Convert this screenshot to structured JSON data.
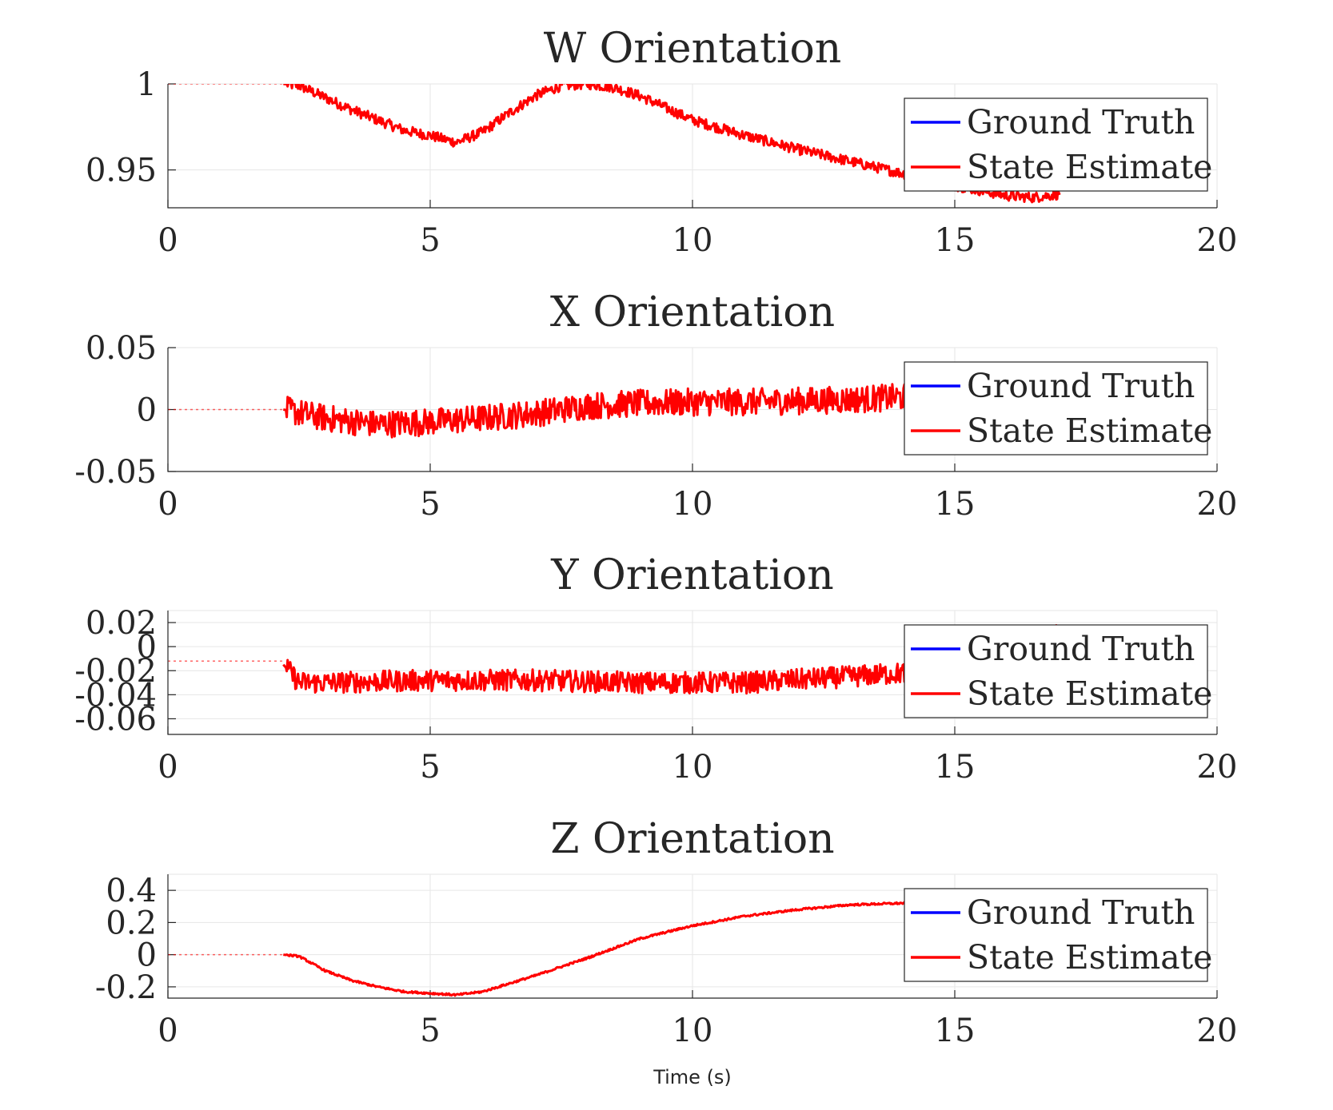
{
  "chart_data": [
    {
      "type": "line",
      "title": "W Orientation",
      "xlabel": "",
      "ylabel": "",
      "xlim": [
        0,
        20
      ],
      "ylim": [
        0.928,
        1.0
      ],
      "xticks": [
        0,
        5,
        10,
        15,
        20
      ],
      "xtick_labels": [
        "0",
        "5",
        "10",
        "15",
        "20"
      ],
      "yticks": [
        0.95,
        1.0
      ],
      "ytick_labels": [
        "0.95",
        "1"
      ],
      "grid": true,
      "legend_position": "top-right",
      "series": [
        {
          "name": "Ground Truth",
          "color": "#0000ff",
          "x": [
            0,
            17
          ],
          "y": [
            1.0,
            1.0
          ]
        },
        {
          "name": "State Estimate",
          "color": "#ff0000",
          "noise": 0.003,
          "x": [
            0,
            2.2,
            2.5,
            3,
            3.5,
            4,
            4.5,
            5,
            5.5,
            6,
            6.5,
            7,
            7.5,
            8,
            8.5,
            9,
            10,
            11,
            12,
            13,
            14,
            15,
            16,
            16.5,
            17
          ],
          "y": [
            1.0,
            1.0,
            0.999,
            0.992,
            0.985,
            0.979,
            0.973,
            0.97,
            0.966,
            0.972,
            0.983,
            0.993,
            0.999,
            1.0,
            0.998,
            0.993,
            0.979,
            0.97,
            0.962,
            0.955,
            0.948,
            0.941,
            0.935,
            0.934,
            0.936
          ]
        }
      ]
    },
    {
      "type": "line",
      "title": "X Orientation",
      "xlabel": "",
      "ylabel": "",
      "xlim": [
        0,
        20
      ],
      "ylim": [
        -0.05,
        0.05
      ],
      "xticks": [
        0,
        5,
        10,
        15,
        20
      ],
      "xtick_labels": [
        "0",
        "5",
        "10",
        "15",
        "20"
      ],
      "yticks": [
        -0.05,
        0,
        0.05
      ],
      "ytick_labels": [
        "-0.05",
        "0",
        "0.05"
      ],
      "grid": true,
      "legend_position": "top-right",
      "series": [
        {
          "name": "Ground Truth",
          "color": "#0000ff",
          "x": [
            0,
            17
          ],
          "y": [
            0,
            0
          ]
        },
        {
          "name": "State Estimate",
          "color": "#ff0000",
          "noise": 0.011,
          "x": [
            2.2,
            3,
            4,
            5,
            6,
            7,
            8,
            9,
            10,
            11,
            12,
            13,
            14,
            15,
            16,
            17
          ],
          "y": [
            0.0,
            -0.007,
            -0.012,
            -0.01,
            -0.007,
            -0.003,
            0.003,
            0.005,
            0.006,
            0.006,
            0.007,
            0.008,
            0.01,
            0.01,
            0.012,
            0.012
          ]
        }
      ]
    },
    {
      "type": "line",
      "title": "Y Orientation",
      "xlabel": "",
      "ylabel": "",
      "xlim": [
        0,
        20
      ],
      "ylim": [
        -0.073,
        0.03
      ],
      "xticks": [
        0,
        5,
        10,
        15,
        20
      ],
      "xtick_labels": [
        "0",
        "5",
        "10",
        "15",
        "20"
      ],
      "yticks": [
        -0.06,
        -0.04,
        -0.02,
        0,
        0.02
      ],
      "ytick_labels": [
        "-0.06",
        "-0.04",
        "-0.02",
        "0",
        "0.02"
      ],
      "grid": true,
      "legend_position": "top-right",
      "series": [
        {
          "name": "Ground Truth",
          "color": "#0000ff",
          "x": [
            0,
            17
          ],
          "y": [
            -0.012,
            -0.012
          ]
        },
        {
          "name": "State Estimate",
          "color": "#ff0000",
          "noise": 0.009,
          "x": [
            2.2,
            2.5,
            3,
            5,
            7,
            9,
            11,
            13,
            14,
            15,
            16,
            16.5,
            17
          ],
          "y": [
            -0.015,
            -0.03,
            -0.03,
            -0.028,
            -0.028,
            -0.03,
            -0.03,
            -0.025,
            -0.022,
            -0.02,
            -0.01,
            0.005,
            0.01
          ]
        }
      ]
    },
    {
      "type": "line",
      "title": "Z Orientation",
      "xlabel": "Time (s)",
      "ylabel": "",
      "xlim": [
        0,
        20
      ],
      "ylim": [
        -0.27,
        0.5
      ],
      "xticks": [
        0,
        5,
        10,
        15,
        20
      ],
      "xtick_labels": [
        "0",
        "5",
        "10",
        "15",
        "20"
      ],
      "yticks": [
        -0.2,
        0,
        0.2,
        0.4
      ],
      "ytick_labels": [
        "-0.2",
        "0",
        "0.2",
        "0.4"
      ],
      "grid": true,
      "legend_position": "top-right",
      "series": [
        {
          "name": "Ground Truth",
          "color": "#0000ff",
          "x": [
            0,
            17
          ],
          "y": [
            0,
            0
          ]
        },
        {
          "name": "State Estimate",
          "color": "#ff0000",
          "noise": 0.006,
          "x": [
            0,
            2.2,
            2.5,
            3,
            3.5,
            4,
            4.5,
            5,
            5.5,
            6,
            6.5,
            7,
            8,
            9,
            10,
            11,
            12,
            13,
            14,
            15,
            16,
            17
          ],
          "y": [
            0,
            0,
            -0.01,
            -0.1,
            -0.16,
            -0.2,
            -0.23,
            -0.24,
            -0.25,
            -0.23,
            -0.18,
            -0.13,
            -0.02,
            0.1,
            0.18,
            0.24,
            0.28,
            0.31,
            0.32,
            0.34,
            0.35,
            0.36
          ]
        }
      ]
    }
  ]
}
